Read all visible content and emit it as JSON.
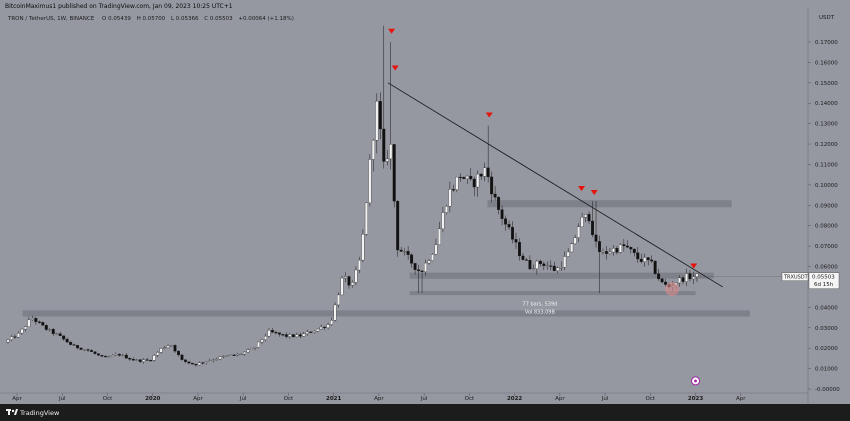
{
  "attribution": "BitcoinMaximus1 published on TradingView.com, Jan 09, 2023 10:25 UTC+1",
  "chart_data": {
    "type": "candlestick",
    "title": "TRON / TetherUS, 1W, BINANCE",
    "symbol": "TRXUSDT",
    "ohlc": {
      "o_label": "O",
      "o": "0.05439",
      "h_label": "H",
      "h": "0.05700",
      "l_label": "L",
      "l": "0.05366",
      "c_label": "C",
      "c": "0.05503",
      "change": "+0.00064 (+1.18%)"
    },
    "price_axis": {
      "currency": "USDT",
      "ylim": [
        0.0,
        0.18
      ],
      "ticks": [
        "0.17000",
        "0.16000",
        "0.15000",
        "0.14000",
        "0.13000",
        "0.12000",
        "0.11000",
        "0.10000",
        "0.09000",
        "0.08000",
        "0.07000",
        "0.06000",
        "0.04000",
        "0.03000",
        "0.02000",
        "0.01000",
        "-0.00000"
      ]
    },
    "time_axis": {
      "labels": [
        "Apr",
        "Jul",
        "Oct",
        "2020",
        "Apr",
        "Jul",
        "Oct",
        "2021",
        "Apr",
        "Jul",
        "Oct",
        "2022",
        "Apr",
        "Jul",
        "Oct",
        "2023",
        "Apr"
      ],
      "positions": [
        2019.25,
        2019.5,
        2019.75,
        2020.0,
        2020.25,
        2020.5,
        2020.75,
        2021.0,
        2021.25,
        2021.5,
        2021.75,
        2022.0,
        2022.25,
        2022.5,
        2022.75,
        2023.0,
        2023.25
      ],
      "xlim": [
        2019.2,
        2023.6
      ]
    },
    "current_price": {
      "value": 0.05503,
      "label": "0.05503",
      "countdown": "6d 15h",
      "symbol_label": "TRXUSDT"
    },
    "anchors": [
      [
        2019.2,
        0.023
      ],
      [
        2019.28,
        0.027
      ],
      [
        2019.35,
        0.035
      ],
      [
        2019.42,
        0.03
      ],
      [
        2019.5,
        0.026
      ],
      [
        2019.58,
        0.021
      ],
      [
        2019.66,
        0.019
      ],
      [
        2019.75,
        0.015
      ],
      [
        2019.83,
        0.017
      ],
      [
        2019.92,
        0.014
      ],
      [
        2020.0,
        0.014
      ],
      [
        2020.07,
        0.02
      ],
      [
        2020.12,
        0.022
      ],
      [
        2020.18,
        0.014
      ],
      [
        2020.25,
        0.012
      ],
      [
        2020.33,
        0.014
      ],
      [
        2020.42,
        0.016
      ],
      [
        2020.5,
        0.017
      ],
      [
        2020.58,
        0.02
      ],
      [
        2020.66,
        0.028
      ],
      [
        2020.75,
        0.026
      ],
      [
        2020.83,
        0.026
      ],
      [
        2020.92,
        0.029
      ],
      [
        2021.0,
        0.032
      ],
      [
        2021.07,
        0.055
      ],
      [
        2021.12,
        0.05
      ],
      [
        2021.17,
        0.065
      ],
      [
        2021.23,
        0.12
      ],
      [
        2021.26,
        0.14
      ],
      [
        2021.3,
        0.105
      ],
      [
        2021.33,
        0.125
      ],
      [
        2021.37,
        0.07
      ],
      [
        2021.42,
        0.065
      ],
      [
        2021.5,
        0.057
      ],
      [
        2021.58,
        0.07
      ],
      [
        2021.65,
        0.095
      ],
      [
        2021.72,
        0.105
      ],
      [
        2021.78,
        0.1
      ],
      [
        2021.86,
        0.108
      ],
      [
        2021.92,
        0.09
      ],
      [
        2022.0,
        0.075
      ],
      [
        2022.05,
        0.066
      ],
      [
        2022.1,
        0.06
      ],
      [
        2022.17,
        0.062
      ],
      [
        2022.25,
        0.058
      ],
      [
        2022.33,
        0.068
      ],
      [
        2022.38,
        0.082
      ],
      [
        2022.43,
        0.085
      ],
      [
        2022.47,
        0.07
      ],
      [
        2022.5,
        0.066
      ],
      [
        2022.55,
        0.068
      ],
      [
        2022.63,
        0.07
      ],
      [
        2022.7,
        0.064
      ],
      [
        2022.77,
        0.062
      ],
      [
        2022.83,
        0.052
      ],
      [
        2022.87,
        0.05
      ],
      [
        2022.92,
        0.053
      ],
      [
        2022.97,
        0.055
      ],
      [
        2023.02,
        0.055
      ]
    ],
    "zones": [
      {
        "name": "range-top",
        "y_from": 0.089,
        "y_to": 0.0925,
        "x_from": 2021.85,
        "x_to": 2023.2
      },
      {
        "name": "support-upper",
        "y_from": 0.054,
        "y_to": 0.057,
        "x_from": 2021.42,
        "x_to": 2023.1
      },
      {
        "name": "support-lower",
        "y_from": 0.046,
        "y_to": 0.048,
        "x_from": 2021.42,
        "x_to": 2023.0
      },
      {
        "name": "old-resistance",
        "y_from": 0.0355,
        "y_to": 0.0385,
        "x_from": 2019.28,
        "x_to": 2023.3
      }
    ],
    "trendline": {
      "x1": 2021.3,
      "y1": 0.15,
      "x2": 2023.15,
      "y2": 0.05
    },
    "markers": [
      {
        "x": 2021.32,
        "y": 0.175
      },
      {
        "x": 2021.34,
        "y": 0.157
      },
      {
        "x": 2021.86,
        "y": 0.134
      },
      {
        "x": 2022.37,
        "y": 0.098
      },
      {
        "x": 2022.44,
        "y": 0.096
      },
      {
        "x": 2022.99,
        "y": 0.06
      }
    ],
    "range_info": {
      "bars": "77 bars, 539d",
      "volume": "Vol 833.09B",
      "x": 2022.14,
      "y_bars": 0.042,
      "y_vol": 0.038
    },
    "highlight": {
      "x": 2022.87,
      "y": 0.049
    },
    "event_badge": {
      "x": 2023.0,
      "y": 0.002
    }
  },
  "footer": {
    "brand": "TradingView"
  },
  "colors": {
    "background": "#9598a1",
    "candle_up": "#f2f2f2",
    "candle_down": "#111111",
    "zone": "#7a7d86",
    "marker": "#e8120c",
    "bottom_bar": "#1c1c1c"
  }
}
